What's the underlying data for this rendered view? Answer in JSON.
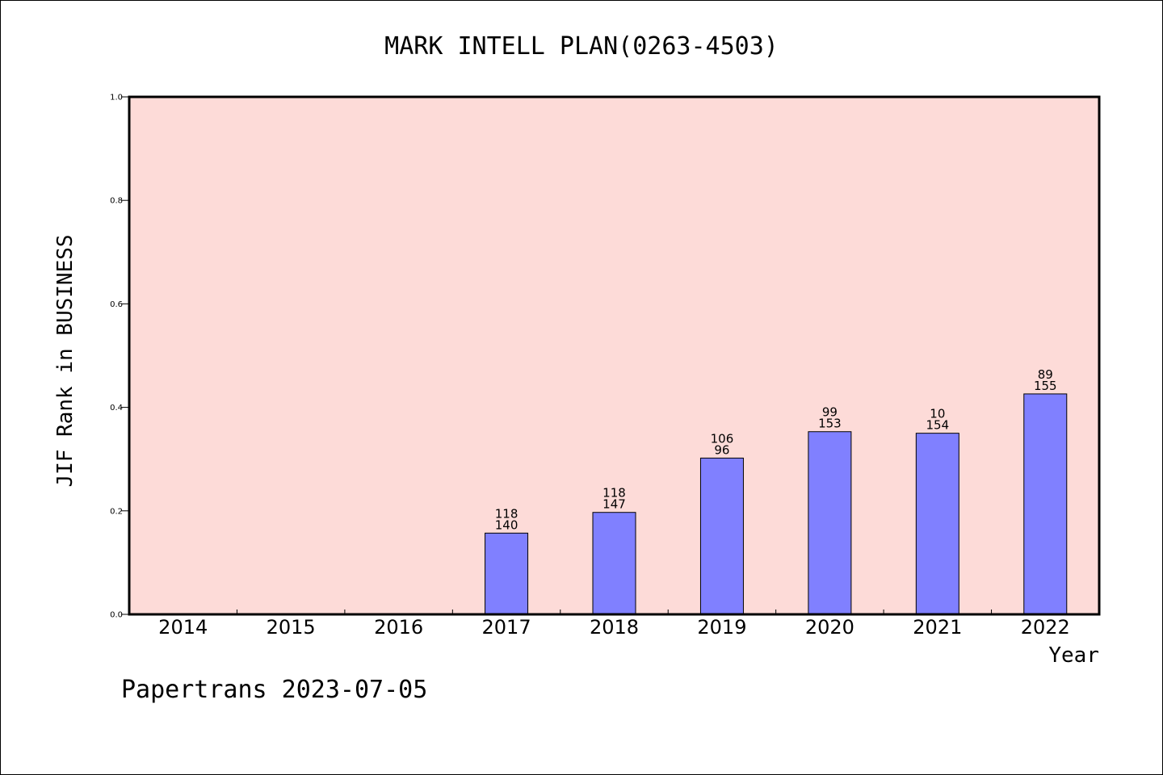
{
  "footer": "Papertrans 2023-07-05",
  "colors": {
    "plot_background": "#fddbd8",
    "bar_fill": "#8080ff",
    "bar_stroke": "#000000",
    "axis": "#000000"
  },
  "chart_data": {
    "type": "bar",
    "title": "MARK INTELL PLAN(0263-4503)",
    "xlabel": "Year",
    "ylabel": "JIF Rank in BUSINESS",
    "ylim": [
      0,
      1.0
    ],
    "yticks": [
      "0.0",
      "0.2",
      "0.4",
      "0.6",
      "0.8",
      "1.0"
    ],
    "grid": false,
    "categories": [
      "2014",
      "2015",
      "2016",
      "2017",
      "2018",
      "2019",
      "2020",
      "2021",
      "2022"
    ],
    "values": [
      null,
      null,
      null,
      0.157,
      0.197,
      0.302,
      0.353,
      0.35,
      0.426
    ],
    "label_top": [
      "",
      "",
      "",
      "118",
      "118",
      "106",
      "99",
      "10",
      "89"
    ],
    "label_bottom": [
      "",
      "",
      "",
      "140",
      "147",
      "96",
      "153",
      "154",
      "155"
    ]
  }
}
